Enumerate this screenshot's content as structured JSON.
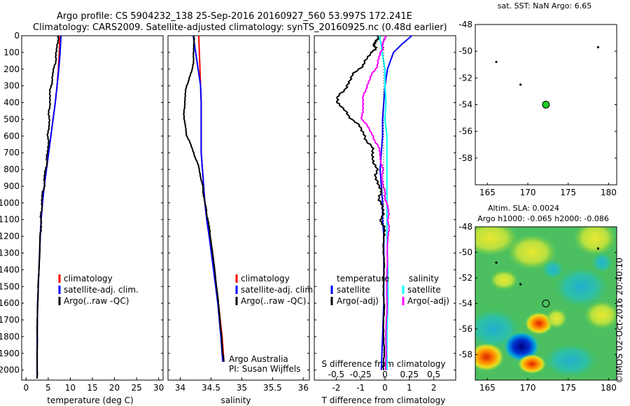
{
  "header": {
    "line1": "Argo profile: CS 5904232_138 25-Sep-2016 20160927_560 53.997S 172.241E",
    "line2": "Climatology: CARS2009. Satellite-adjusted climatology: synTS_20160925.nc (0.48d earlier)"
  },
  "colors": {
    "climatology": "#ff0000",
    "satellite": "#0000ff",
    "argo": "#000000",
    "sal_satellite": "#00ffff",
    "sal_argo": "#ff00ff",
    "float_marker": "#22cc22"
  },
  "depth_ticks": [
    "0",
    "100",
    "200",
    "300",
    "400",
    "500",
    "600",
    "700",
    "800",
    "900",
    "1000",
    "1100",
    "1200",
    "1300",
    "1400",
    "1500",
    "1600",
    "1700",
    "1800",
    "1900",
    "2000"
  ],
  "temp_panel": {
    "xlabel": "temperature (deg C)",
    "xticks": [
      "0",
      "5",
      "10",
      "15",
      "20",
      "25",
      "30"
    ],
    "legend": [
      "climatology",
      "satellite-adj. clim.",
      "Argo(..raw -QC)"
    ]
  },
  "sal_panel": {
    "xlabel": "salinity",
    "xticks": [
      "34",
      "34.5",
      "35",
      "35.5",
      "36"
    ],
    "legend": [
      "climatology",
      "satellite-adj. clim.",
      "Argo(..raw -QC)"
    ],
    "note1": "Argo Australia",
    "note2": "PI: Susan Wijffels"
  },
  "diff_panel": {
    "legend_header_t": "temperature",
    "legend_header_s": "salinity",
    "legend_t": [
      "satellite",
      "Argo(-adj)"
    ],
    "legend_s": [
      "satellite",
      "Argo(-adj)"
    ],
    "s_label": "S difference from climatology",
    "s_ticks": [
      "-0.5",
      "-0.25",
      "0",
      "0.25",
      "0.5"
    ],
    "t_ticks": [
      "-2",
      "-1",
      "0",
      "1",
      "2"
    ],
    "xlabel": "T difference from climatology"
  },
  "map_top": {
    "title": "sat. SST: NaN Argo: 6.65",
    "yticks": [
      "-48",
      "-50",
      "-52",
      "-54",
      "-56",
      "-58"
    ],
    "xticks": [
      "165",
      "170",
      "175",
      "180"
    ]
  },
  "map_bottom": {
    "title1": "Altim. SLA: 0.0024",
    "title2": "Argo h1000: -0.065 h2000: -0.086",
    "yticks": [
      "-48",
      "-50",
      "-52",
      "-54",
      "-56",
      "-58"
    ],
    "xticks": [
      "165",
      "170",
      "175",
      "180"
    ]
  },
  "stamp": "©IMOS 02-Oct-2016 20:40:10",
  "chart_data": [
    {
      "type": "line",
      "ylabel": "",
      "xlabel": "temperature (deg C)",
      "xlim": [
        -1,
        31
      ],
      "ylim": [
        2060,
        0
      ],
      "depth": [
        0,
        100,
        200,
        300,
        400,
        500,
        600,
        700,
        800,
        900,
        1000,
        1100,
        1200,
        1400,
        1600,
        1800,
        2000,
        2050
      ],
      "series": [
        {
          "name": "climatology",
          "values": [
            7.6,
            7.5,
            7.3,
            7.0,
            6.6,
            6.1,
            5.6,
            5.1,
            4.6,
            4.1,
            3.7,
            3.4,
            3.2,
            2.9,
            2.6,
            2.5,
            2.5,
            2.5
          ]
        },
        {
          "name": "satellite-adj. clim.",
          "values": [
            7.9,
            7.7,
            7.4,
            7.0,
            6.6,
            6.1,
            5.6,
            5.1,
            4.6,
            4.1,
            3.7,
            3.4,
            3.2,
            2.9,
            2.6,
            2.5,
            2.5,
            2.5
          ]
        },
        {
          "name": "Argo(..raw -QC)",
          "values": [
            7.2,
            6.9,
            6.3,
            5.6,
            5.3,
            5.2,
            5.0,
            4.9,
            4.4,
            4.0,
            3.5,
            3.4,
            3.2,
            2.9,
            2.6,
            2.5,
            2.5,
            2.5
          ]
        }
      ]
    },
    {
      "type": "line",
      "xlabel": "salinity",
      "xlim": [
        33.8,
        36.1
      ],
      "ylim": [
        2060,
        0
      ],
      "depth": [
        0,
        100,
        200,
        300,
        400,
        500,
        600,
        700,
        800,
        900,
        1000,
        1100,
        1200,
        1400,
        1600,
        1800,
        1900,
        1950
      ],
      "series": [
        {
          "name": "climatology",
          "values": [
            34.3,
            34.31,
            34.32,
            34.33,
            34.34,
            34.34,
            34.34,
            34.34,
            34.36,
            34.38,
            34.4,
            34.43,
            34.47,
            34.55,
            34.62,
            34.68,
            34.7,
            34.71
          ]
        },
        {
          "name": "satellite-adj. clim.",
          "values": [
            34.21,
            34.25,
            34.29,
            34.33,
            34.34,
            34.34,
            34.34,
            34.34,
            34.36,
            34.38,
            34.4,
            34.43,
            34.47,
            34.54,
            34.61,
            34.66,
            34.68,
            34.69
          ]
        },
        {
          "name": "Argo(..raw -QC)",
          "values": [
            34.22,
            34.22,
            34.2,
            34.1,
            34.07,
            34.06,
            34.11,
            34.22,
            34.31,
            34.36,
            34.4,
            34.45,
            34.49,
            34.56,
            34.62,
            34.67,
            34.69,
            34.71
          ]
        }
      ]
    },
    {
      "type": "line",
      "xlabel": "T difference from climatology",
      "xlim": [
        -2.9,
        2.9
      ],
      "ylim": [
        2060,
        0
      ],
      "depth": [
        0,
        50,
        100,
        200,
        300,
        400,
        500,
        600,
        700,
        800,
        900,
        1000,
        1100,
        1200,
        1400,
        1600,
        1800,
        2000
      ],
      "series": [
        {
          "name": "satellite",
          "values": [
            1.1,
            0.7,
            0.35,
            0.1,
            0.0,
            -0.05,
            -0.1,
            -0.1,
            -0.15,
            -0.2,
            -0.15,
            -0.1,
            -0.1,
            -0.05,
            -0.05,
            -0.05,
            -0.1,
            -0.15
          ]
        },
        {
          "name": "Argo(-adj)",
          "values": [
            -0.3,
            -0.4,
            -0.5,
            -1.1,
            -1.6,
            -2.0,
            -1.3,
            -0.8,
            -0.5,
            -0.4,
            -0.25,
            -0.15,
            -0.1,
            -0.05,
            -0.05,
            -0.05,
            -0.05,
            -0.05
          ]
        }
      ],
      "salinity_series": [
        {
          "name": "satellite",
          "values": [
            -0.06,
            -0.04,
            -0.03,
            0.0,
            0.0,
            0.01,
            0.0,
            0.02,
            0.02,
            0.02,
            0.02,
            0.02,
            0.02,
            0.02,
            0.03,
            0.03,
            0.02,
            0.02
          ]
        },
        {
          "name": "Argo(-adj)",
          "values": [
            0.0,
            -0.02,
            -0.04,
            -0.1,
            -0.19,
            -0.23,
            -0.23,
            -0.12,
            -0.05,
            -0.03,
            -0.02,
            0.02,
            0.04,
            0.03,
            0.02,
            0.02,
            0.01,
            0.01
          ]
        }
      ]
    },
    {
      "type": "scatter",
      "title": "sat. SST: NaN Argo: 6.65",
      "xlim": [
        163.5,
        181
      ],
      "ylim": [
        -60,
        -48
      ],
      "points": [
        {
          "lon": 166.1,
          "lat": -50.8
        },
        {
          "lon": 169.1,
          "lat": -52.5
        },
        {
          "lon": 178.7,
          "lat": -49.7
        },
        {
          "lon": 172.24,
          "lat": -54.0,
          "highlight": true
        }
      ]
    },
    {
      "type": "heatmap",
      "title": "Altim. SLA: 0.0024",
      "xlim": [
        163.5,
        181
      ],
      "ylim": [
        -60,
        -48
      ],
      "points": [
        {
          "lon": 166.1,
          "lat": -50.8
        },
        {
          "lon": 169.1,
          "lat": -52.5
        },
        {
          "lon": 178.7,
          "lat": -49.7
        },
        {
          "lon": 172.24,
          "lat": -54.0,
          "highlight": true
        }
      ]
    }
  ]
}
